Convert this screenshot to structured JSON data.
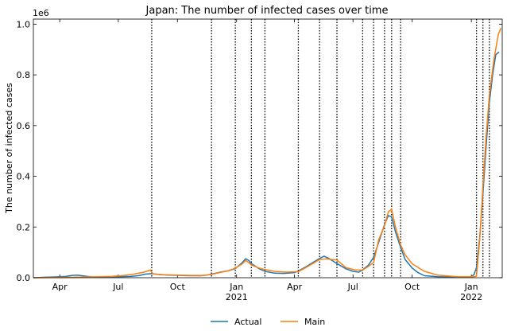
{
  "chart_data": {
    "type": "line",
    "title": "Japan: The number of infected cases over time",
    "ylabel": "The number of infected cases",
    "xlabel": "",
    "y_offset_label": "1e6",
    "y_ticks": [
      {
        "value": 0.0,
        "label": "0.0"
      },
      {
        "value": 0.2,
        "label": "0.2"
      },
      {
        "value": 0.4,
        "label": "0.4"
      },
      {
        "value": 0.6,
        "label": "0.6"
      },
      {
        "value": 0.8,
        "label": "0.8"
      },
      {
        "value": 1.0,
        "label": "1.0"
      }
    ],
    "ylim": [
      0,
      1.02
    ],
    "xlim": [
      "2020-02-20",
      "2022-02-18"
    ],
    "x_ticks": [
      {
        "date": "2020-04-01",
        "label": "Apr",
        "label2": ""
      },
      {
        "date": "2020-07-01",
        "label": "Jul",
        "label2": ""
      },
      {
        "date": "2020-10-01",
        "label": "Oct",
        "label2": ""
      },
      {
        "date": "2021-01-01",
        "label": "Jan",
        "label2": "2021"
      },
      {
        "date": "2021-04-01",
        "label": "Apr",
        "label2": ""
      },
      {
        "date": "2021-07-01",
        "label": "Jul",
        "label2": ""
      },
      {
        "date": "2021-10-01",
        "label": "Oct",
        "label2": ""
      },
      {
        "date": "2022-01-01",
        "label": "Jan",
        "label2": "2022"
      }
    ],
    "change_points": [
      "2020-08-22",
      "2020-11-23",
      "2020-12-30",
      "2021-01-24",
      "2021-02-14",
      "2021-04-07",
      "2021-05-10",
      "2021-06-06",
      "2021-07-16",
      "2021-08-02",
      "2021-08-19",
      "2021-08-30",
      "2021-09-13",
      "2022-01-09",
      "2022-01-19",
      "2022-01-29"
    ],
    "legend": {
      "placement": "bottom-center"
    },
    "grid": false,
    "series": [
      {
        "name": "Actual",
        "color": "#1f77b4",
        "points": [
          [
            "2020-02-20",
            0.0
          ],
          [
            "2020-03-10",
            0.002
          ],
          [
            "2020-03-25",
            0.003
          ],
          [
            "2020-04-10",
            0.005
          ],
          [
            "2020-04-20",
            0.009
          ],
          [
            "2020-04-28",
            0.01
          ],
          [
            "2020-05-08",
            0.007
          ],
          [
            "2020-05-20",
            0.003
          ],
          [
            "2020-06-05",
            0.002
          ],
          [
            "2020-06-20",
            0.003
          ],
          [
            "2020-07-05",
            0.004
          ],
          [
            "2020-07-20",
            0.005
          ],
          [
            "2020-08-01",
            0.008
          ],
          [
            "2020-08-12",
            0.014
          ],
          [
            "2020-08-22",
            0.016
          ],
          [
            "2020-09-05",
            0.012
          ],
          [
            "2020-09-20",
            0.01
          ],
          [
            "2020-10-05",
            0.009
          ],
          [
            "2020-10-20",
            0.008
          ],
          [
            "2020-11-05",
            0.008
          ],
          [
            "2020-11-15",
            0.01
          ],
          [
            "2020-11-23",
            0.014
          ],
          [
            "2020-12-05",
            0.021
          ],
          [
            "2020-12-20",
            0.028
          ],
          [
            "2020-12-30",
            0.036
          ],
          [
            "2021-01-10",
            0.06
          ],
          [
            "2021-01-15",
            0.075
          ],
          [
            "2021-01-20",
            0.068
          ],
          [
            "2021-01-24",
            0.056
          ],
          [
            "2021-02-05",
            0.035
          ],
          [
            "2021-02-14",
            0.025
          ],
          [
            "2021-03-01",
            0.018
          ],
          [
            "2021-03-15",
            0.017
          ],
          [
            "2021-04-01",
            0.02
          ],
          [
            "2021-04-07",
            0.026
          ],
          [
            "2021-04-20",
            0.045
          ],
          [
            "2021-05-05",
            0.068
          ],
          [
            "2021-05-10",
            0.076
          ],
          [
            "2021-05-17",
            0.085
          ],
          [
            "2021-05-25",
            0.075
          ],
          [
            "2021-06-06",
            0.056
          ],
          [
            "2021-06-20",
            0.035
          ],
          [
            "2021-07-01",
            0.025
          ],
          [
            "2021-07-10",
            0.022
          ],
          [
            "2021-07-16",
            0.031
          ],
          [
            "2021-07-25",
            0.05
          ],
          [
            "2021-08-02",
            0.08
          ],
          [
            "2021-08-10",
            0.14
          ],
          [
            "2021-08-19",
            0.21
          ],
          [
            "2021-08-25",
            0.245
          ],
          [
            "2021-08-30",
            0.24
          ],
          [
            "2021-09-05",
            0.18
          ],
          [
            "2021-09-13",
            0.12
          ],
          [
            "2021-09-20",
            0.072
          ],
          [
            "2021-10-01",
            0.038
          ],
          [
            "2021-10-10",
            0.02
          ],
          [
            "2021-10-20",
            0.008
          ],
          [
            "2021-11-10",
            0.004
          ],
          [
            "2021-12-10",
            0.003
          ],
          [
            "2021-12-31",
            0.003
          ],
          [
            "2022-01-05",
            0.012
          ],
          [
            "2022-01-09",
            0.04
          ],
          [
            "2022-01-14",
            0.16
          ],
          [
            "2022-01-19",
            0.33
          ],
          [
            "2022-01-24",
            0.52
          ],
          [
            "2022-01-29",
            0.69
          ],
          [
            "2022-02-03",
            0.8
          ],
          [
            "2022-02-08",
            0.88
          ],
          [
            "2022-02-13",
            0.89
          ]
        ]
      },
      {
        "name": "Main",
        "color": "#ff7f0e",
        "points": [
          [
            "2020-02-20",
            0.0
          ],
          [
            "2020-03-20",
            0.001
          ],
          [
            "2020-04-20",
            0.002
          ],
          [
            "2020-05-20",
            0.003
          ],
          [
            "2020-06-20",
            0.005
          ],
          [
            "2020-07-10",
            0.009
          ],
          [
            "2020-07-25",
            0.014
          ],
          [
            "2020-08-10",
            0.022
          ],
          [
            "2020-08-20",
            0.03
          ],
          [
            "2020-08-24",
            0.015
          ],
          [
            "2020-09-10",
            0.012
          ],
          [
            "2020-10-01",
            0.01
          ],
          [
            "2020-10-20",
            0.009
          ],
          [
            "2020-11-10",
            0.009
          ],
          [
            "2020-11-23",
            0.013
          ],
          [
            "2020-12-05",
            0.02
          ],
          [
            "2020-12-20",
            0.028
          ],
          [
            "2020-12-30",
            0.038
          ],
          [
            "2021-01-10",
            0.055
          ],
          [
            "2021-01-15",
            0.068
          ],
          [
            "2021-01-20",
            0.06
          ],
          [
            "2021-01-24",
            0.05
          ],
          [
            "2021-02-05",
            0.038
          ],
          [
            "2021-02-14",
            0.032
          ],
          [
            "2021-03-01",
            0.025
          ],
          [
            "2021-03-20",
            0.022
          ],
          [
            "2021-04-07",
            0.024
          ],
          [
            "2021-04-20",
            0.042
          ],
          [
            "2021-05-10",
            0.072
          ],
          [
            "2021-05-20",
            0.074
          ],
          [
            "2021-06-06",
            0.07
          ],
          [
            "2021-06-20",
            0.04
          ],
          [
            "2021-07-05",
            0.03
          ],
          [
            "2021-07-16",
            0.03
          ],
          [
            "2021-07-25",
            0.045
          ],
          [
            "2021-08-02",
            0.06
          ],
          [
            "2021-08-10",
            0.15
          ],
          [
            "2021-08-19",
            0.205
          ],
          [
            "2021-08-25",
            0.26
          ],
          [
            "2021-08-30",
            0.27
          ],
          [
            "2021-09-05",
            0.2
          ],
          [
            "2021-09-13",
            0.13
          ],
          [
            "2021-09-20",
            0.09
          ],
          [
            "2021-10-01",
            0.055
          ],
          [
            "2021-10-20",
            0.025
          ],
          [
            "2021-11-10",
            0.01
          ],
          [
            "2021-12-10",
            0.004
          ],
          [
            "2022-01-05",
            0.004
          ],
          [
            "2022-01-09",
            0.006
          ],
          [
            "2022-01-14",
            0.15
          ],
          [
            "2022-01-19",
            0.36
          ],
          [
            "2022-01-24",
            0.56
          ],
          [
            "2022-01-29",
            0.72
          ],
          [
            "2022-02-05",
            0.86
          ],
          [
            "2022-02-12",
            0.96
          ],
          [
            "2022-02-16",
            0.985
          ]
        ]
      }
    ]
  }
}
